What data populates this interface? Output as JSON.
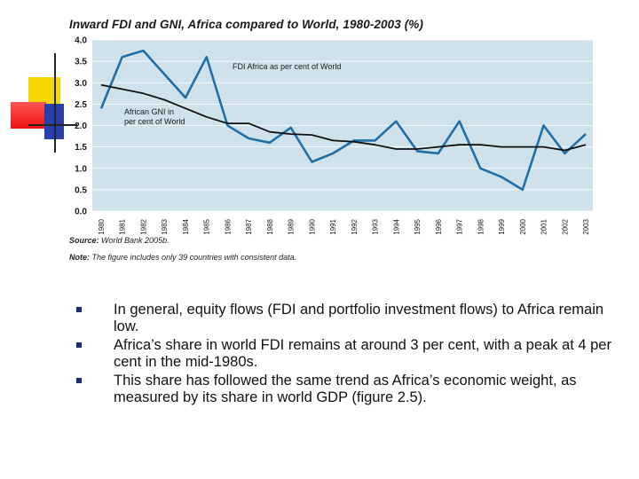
{
  "colors": {
    "plot_bg": "#cfe2ec",
    "fdi_line": "#1f6fa8",
    "gni_line": "#111111",
    "bullet": "#1c2a7a"
  },
  "chart_data": {
    "type": "line",
    "title": "Inward FDI and GNI, Africa compared to World, 1980-2003 (%)",
    "xlabel": "",
    "ylabel": "",
    "ylim": [
      0.0,
      4.0
    ],
    "yticks": [
      "0.0",
      "0.5",
      "1.0",
      "1.5",
      "2.0",
      "2.5",
      "3.0",
      "3.5",
      "4.0"
    ],
    "x": [
      "1980",
      "1981",
      "1982",
      "1983",
      "1984",
      "1985",
      "1986",
      "1987",
      "1988",
      "1989",
      "1990",
      "1991",
      "1992",
      "1993",
      "1994",
      "1995",
      "1996",
      "1997",
      "1998",
      "1999",
      "2000",
      "2001",
      "2002",
      "2003"
    ],
    "series": [
      {
        "name": "FDI Africa as per cent of World",
        "label": "FDI Africa as per cent of World",
        "values": [
          2.4,
          3.6,
          3.75,
          3.2,
          2.65,
          3.6,
          2.0,
          1.7,
          1.6,
          1.95,
          1.15,
          1.35,
          1.65,
          1.65,
          2.1,
          1.4,
          1.35,
          2.1,
          1.0,
          0.8,
          0.5,
          2.0,
          1.35,
          1.8
        ]
      },
      {
        "name": "African GNI in per cent of World",
        "label_line1": "African GNI in",
        "label_line2": "per cent of World",
        "values": [
          2.95,
          2.85,
          2.75,
          2.6,
          2.4,
          2.2,
          2.05,
          2.05,
          1.85,
          1.8,
          1.78,
          1.65,
          1.62,
          1.55,
          1.45,
          1.45,
          1.5,
          1.55,
          1.55,
          1.5,
          1.5,
          1.5,
          1.42,
          1.55
        ]
      }
    ]
  },
  "source_note": {
    "label": "Source:",
    "text": "World Bank 2005b."
  },
  "sample_note": {
    "label": "Note:",
    "text": "The figure includes only 39 countries with consistent data."
  },
  "bullets": [
    "In general, equity flows (FDI and portfolio investment flows) to Africa remain low.",
    "Africa’s share in world FDI remains at around 3 per cent, with a peak at 4 per cent in the mid-1980s.",
    "This share has followed the same trend as Africa’s economic weight, as measured by its share in world GDP (figure 2.5)."
  ]
}
